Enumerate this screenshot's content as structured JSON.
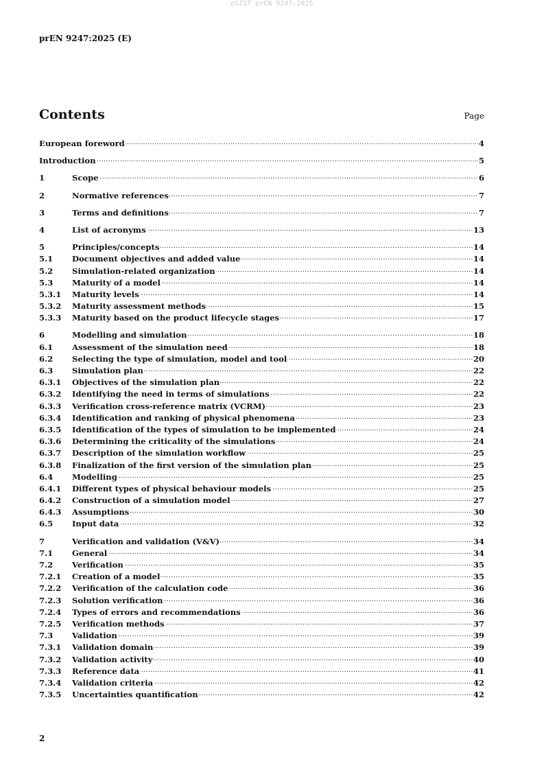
{
  "watermark": "oSIST prEN 9247:2025",
  "header": "prEN 9247:2025 (E)",
  "contents_title": "Contents",
  "page_label": "Page",
  "footer_page": "2",
  "groups": [
    [
      {
        "num": "",
        "title": "European foreword",
        "page": "4"
      }
    ],
    [
      {
        "num": "",
        "title": "Introduction",
        "page": "5"
      }
    ],
    [
      {
        "num": "1",
        "title": "Scope",
        "page": "6"
      }
    ],
    [
      {
        "num": "2",
        "title": "Normative references",
        "page": "7"
      }
    ],
    [
      {
        "num": "3",
        "title": "Terms and definitions",
        "page": "7"
      }
    ],
    [
      {
        "num": "4",
        "title": "List of acronyms",
        "page": "13"
      }
    ],
    [
      {
        "num": "5",
        "title": "Principles/concepts",
        "page": "14"
      },
      {
        "num": "5.1",
        "title": "Document objectives and added value",
        "page": "14"
      },
      {
        "num": "5.2",
        "title": "Simulation-related organization",
        "page": "14"
      },
      {
        "num": "5.3",
        "title": "Maturity of a model",
        "page": "14"
      },
      {
        "num": "5.3.1",
        "title": "Maturity levels",
        "page": "14"
      },
      {
        "num": "5.3.2",
        "title": "Maturity assessment methods",
        "page": "15"
      },
      {
        "num": "5.3.3",
        "title": "Maturity based on the product lifecycle stages",
        "page": "17"
      }
    ],
    [
      {
        "num": "6",
        "title": "Modelling and simulation",
        "page": "18"
      },
      {
        "num": "6.1",
        "title": "Assessment of the simulation need",
        "page": "18"
      },
      {
        "num": "6.2",
        "title": "Selecting the type of simulation, model and tool",
        "page": "20"
      },
      {
        "num": "6.3",
        "title": "Simulation plan",
        "page": "22"
      },
      {
        "num": "6.3.1",
        "title": "Objectives of the simulation plan",
        "page": "22"
      },
      {
        "num": "6.3.2",
        "title": "Identifying the need in terms of simulations",
        "page": "22"
      },
      {
        "num": "6.3.3",
        "title": "Verification cross-reference matrix (VCRM)",
        "page": "23"
      },
      {
        "num": "6.3.4",
        "title": "Identification and ranking of physical phenomena",
        "page": "23"
      },
      {
        "num": "6.3.5",
        "title": "Identification of the types of simulation to be implemented",
        "page": "24"
      },
      {
        "num": "6.3.6",
        "title": "Determining the criticality of the simulations",
        "page": "24"
      },
      {
        "num": "6.3.7",
        "title": "Description of the simulation workflow",
        "page": "25"
      },
      {
        "num": "6.3.8",
        "title": "Finalization of the first version of the simulation plan",
        "page": "25"
      },
      {
        "num": "6.4",
        "title": "Modelling",
        "page": "25"
      },
      {
        "num": "6.4.1",
        "title": "Different types of physical behaviour models",
        "page": "25"
      },
      {
        "num": "6.4.2",
        "title": "Construction of a simulation model",
        "page": "27"
      },
      {
        "num": "6.4.3",
        "title": "Assumptions",
        "page": "30"
      },
      {
        "num": "6.5",
        "title": "Input data",
        "page": "32"
      }
    ],
    [
      {
        "num": "7",
        "title": "Verification and validation (V&V)",
        "page": "34"
      },
      {
        "num": "7.1",
        "title": "General",
        "page": "34"
      },
      {
        "num": "7.2",
        "title": "Verification",
        "page": "35"
      },
      {
        "num": "7.2.1",
        "title": "Creation of a model",
        "page": "35"
      },
      {
        "num": "7.2.2",
        "title": "Verification of the calculation code",
        "page": "36"
      },
      {
        "num": "7.2.3",
        "title": "Solution verification",
        "page": "36"
      },
      {
        "num": "7.2.4",
        "title": "Types of errors and recommendations",
        "page": "36"
      },
      {
        "num": "7.2.5",
        "title": "Verification methods",
        "page": "37"
      },
      {
        "num": "7.3",
        "title": "Validation",
        "page": "39"
      },
      {
        "num": "7.3.1",
        "title": "Validation domain",
        "page": "39"
      },
      {
        "num": "7.3.2",
        "title": "Validation activity",
        "page": "40"
      },
      {
        "num": "7.3.3",
        "title": "Reference data",
        "page": "41"
      },
      {
        "num": "7.3.4",
        "title": "Validation criteria",
        "page": "42"
      },
      {
        "num": "7.3.5",
        "title": "Uncertainties quantification",
        "page": "42"
      }
    ]
  ]
}
